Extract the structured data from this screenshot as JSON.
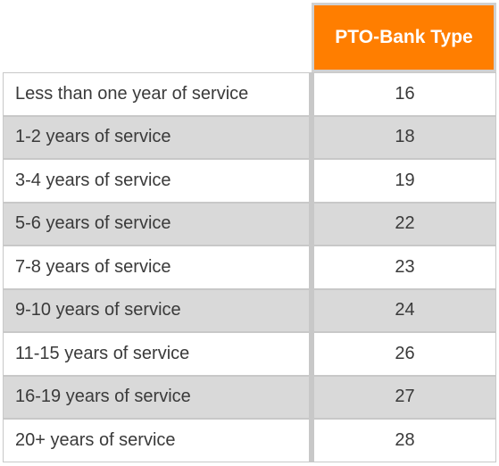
{
  "table": {
    "header": "PTO-Bank Type",
    "rows": [
      {
        "label": "Less than one year of service",
        "value": "16"
      },
      {
        "label": "1-2 years of service",
        "value": "18"
      },
      {
        "label": "3-4 years of service",
        "value": "19"
      },
      {
        "label": "5-6 years of service",
        "value": "22"
      },
      {
        "label": "7-8 years of service",
        "value": "23"
      },
      {
        "label": "9-10 years of service",
        "value": "24"
      },
      {
        "label": "11-15 years of service",
        "value": "26"
      },
      {
        "label": "16-19 years of service",
        "value": "27"
      },
      {
        "label": "20+ years of service",
        "value": "28"
      }
    ]
  },
  "colors": {
    "header_bg": "#ff7e00",
    "header_text": "#ffffff",
    "stripe": "#d9d9d9"
  }
}
